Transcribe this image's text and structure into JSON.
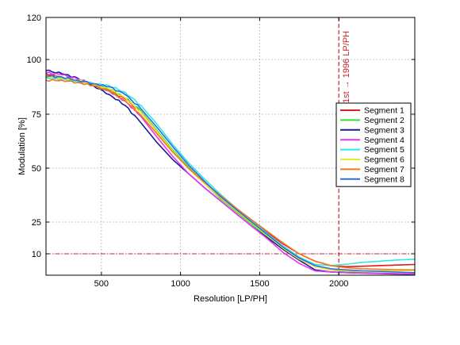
{
  "chart_data": {
    "type": "line",
    "title": "",
    "xlabel": "Resolution [LP/PH]",
    "ylabel": "Modulation [%]",
    "xlim": [
      150,
      2480
    ],
    "xticks": [
      500,
      1000,
      1500,
      2000
    ],
    "yticks": [
      10,
      25,
      50,
      75,
      100,
      120
    ],
    "ytick_positions": [
      0,
      25,
      50,
      75,
      100,
      120
    ],
    "grid": true,
    "legend_position": "right",
    "annotations": {
      "vertical_line": {
        "x": 2000,
        "label": "1st → 1996 LP/PH",
        "color": "#c0262b"
      },
      "horizontal_line": {
        "y": 10,
        "color": "#c0262b"
      }
    },
    "series": [
      {
        "name": "Segment 1",
        "color": "#e41a1c",
        "x": [
          150,
          250,
          350,
          450,
          550,
          650,
          750,
          850,
          950,
          1050,
          1150,
          1250,
          1350,
          1450,
          1550,
          1650,
          1750,
          1850,
          1950,
          2050,
          2150,
          2250,
          2350,
          2480
        ],
        "y": [
          93.5,
          92,
          90.5,
          88.5,
          86,
          82,
          76,
          67,
          58,
          50,
          43,
          37,
          31,
          25.5,
          20,
          14.5,
          10,
          6.5,
          4.5,
          4,
          4.2,
          4.5,
          4.7,
          5
        ]
      },
      {
        "name": "Segment 2",
        "color": "#33dd33",
        "x": [
          150,
          250,
          350,
          450,
          550,
          650,
          750,
          850,
          950,
          1050,
          1150,
          1250,
          1350,
          1450,
          1550,
          1650,
          1750,
          1850,
          1950,
          2050,
          2150,
          2250,
          2350,
          2480
        ],
        "y": [
          92,
          91.5,
          90,
          88.5,
          86.5,
          82.5,
          76.5,
          67.5,
          58.5,
          50.5,
          43,
          36,
          30,
          24,
          18,
          12,
          7.5,
          4,
          2.5,
          1.5,
          1.2,
          1,
          0.8,
          0.6
        ]
      },
      {
        "name": "Segment 3",
        "color": "#1c1c9e",
        "x": [
          150,
          250,
          350,
          450,
          550,
          650,
          750,
          850,
          950,
          1050,
          1150,
          1250,
          1350,
          1450,
          1550,
          1650,
          1750,
          1850,
          1950,
          2050,
          2150,
          2250,
          2350,
          2480
        ],
        "y": [
          95,
          93.5,
          91.5,
          88,
          84,
          79,
          71,
          62,
          54,
          47.5,
          41,
          35,
          29,
          23,
          17.5,
          12,
          7,
          2.5,
          1.5,
          1.2,
          1,
          0.8,
          0.6,
          0.4
        ]
      },
      {
        "name": "Segment 4",
        "color": "#ee33ee",
        "x": [
          150,
          250,
          350,
          450,
          550,
          650,
          750,
          850,
          950,
          1050,
          1150,
          1250,
          1350,
          1450,
          1550,
          1650,
          1750,
          1850,
          1950,
          2050,
          2150,
          2250,
          2350,
          2480
        ],
        "y": [
          94,
          93,
          91,
          88.5,
          85.5,
          81,
          74,
          64.5,
          55.5,
          47.5,
          41,
          35,
          29,
          23,
          17,
          10.5,
          5.5,
          2,
          1.5,
          1.2,
          1,
          0.9,
          0.7,
          0.5
        ]
      },
      {
        "name": "Segment 5",
        "color": "#33e6e6",
        "x": [
          150,
          250,
          350,
          450,
          550,
          650,
          750,
          850,
          950,
          1050,
          1150,
          1250,
          1350,
          1450,
          1550,
          1650,
          1750,
          1850,
          1950,
          2050,
          2150,
          2250,
          2350,
          2480
        ],
        "y": [
          91.5,
          91,
          90,
          89,
          88,
          85,
          79,
          70.5,
          61,
          52.5,
          45,
          38,
          31.5,
          25.5,
          19.5,
          13.5,
          8.5,
          5,
          4.5,
          5.2,
          6,
          6.5,
          7,
          7.5
        ]
      },
      {
        "name": "Segment 6",
        "color": "#f0e62d",
        "x": [
          150,
          250,
          350,
          450,
          550,
          650,
          750,
          850,
          950,
          1050,
          1150,
          1250,
          1350,
          1450,
          1550,
          1650,
          1750,
          1850,
          1950,
          2050,
          2150,
          2250,
          2350,
          2480
        ],
        "y": [
          92.5,
          91.5,
          90.5,
          88.5,
          86.5,
          82.5,
          76,
          67,
          58,
          50,
          43,
          36.5,
          30.5,
          24.5,
          18.5,
          12.5,
          7.5,
          4,
          2.5,
          2,
          2,
          2,
          2.1,
          2.2
        ]
      },
      {
        "name": "Segment 7",
        "color": "#f07820",
        "x": [
          150,
          250,
          350,
          450,
          550,
          650,
          750,
          850,
          950,
          1050,
          1150,
          1250,
          1350,
          1450,
          1550,
          1650,
          1750,
          1850,
          1950,
          2050,
          2150,
          2250,
          2350,
          2480
        ],
        "y": [
          90.5,
          90.5,
          89.5,
          88,
          85.5,
          81,
          74.5,
          66,
          57.5,
          50,
          43.5,
          37.5,
          31.5,
          26,
          20.5,
          15,
          10,
          6.5,
          4.5,
          3.5,
          3,
          2.8,
          2.6,
          2.5
        ]
      },
      {
        "name": "Segment 8",
        "color": "#2c6fdc",
        "x": [
          150,
          250,
          350,
          450,
          550,
          650,
          750,
          850,
          950,
          1050,
          1150,
          1250,
          1350,
          1450,
          1550,
          1650,
          1750,
          1850,
          1950,
          2050,
          2150,
          2250,
          2350,
          2480
        ],
        "y": [
          92.5,
          92,
          90.5,
          89,
          87.5,
          84,
          77.5,
          69,
          60,
          51.5,
          44,
          37,
          31,
          25,
          19,
          13,
          8,
          4.5,
          3,
          2.5,
          2,
          1.8,
          1.5,
          1.2
        ]
      }
    ]
  }
}
